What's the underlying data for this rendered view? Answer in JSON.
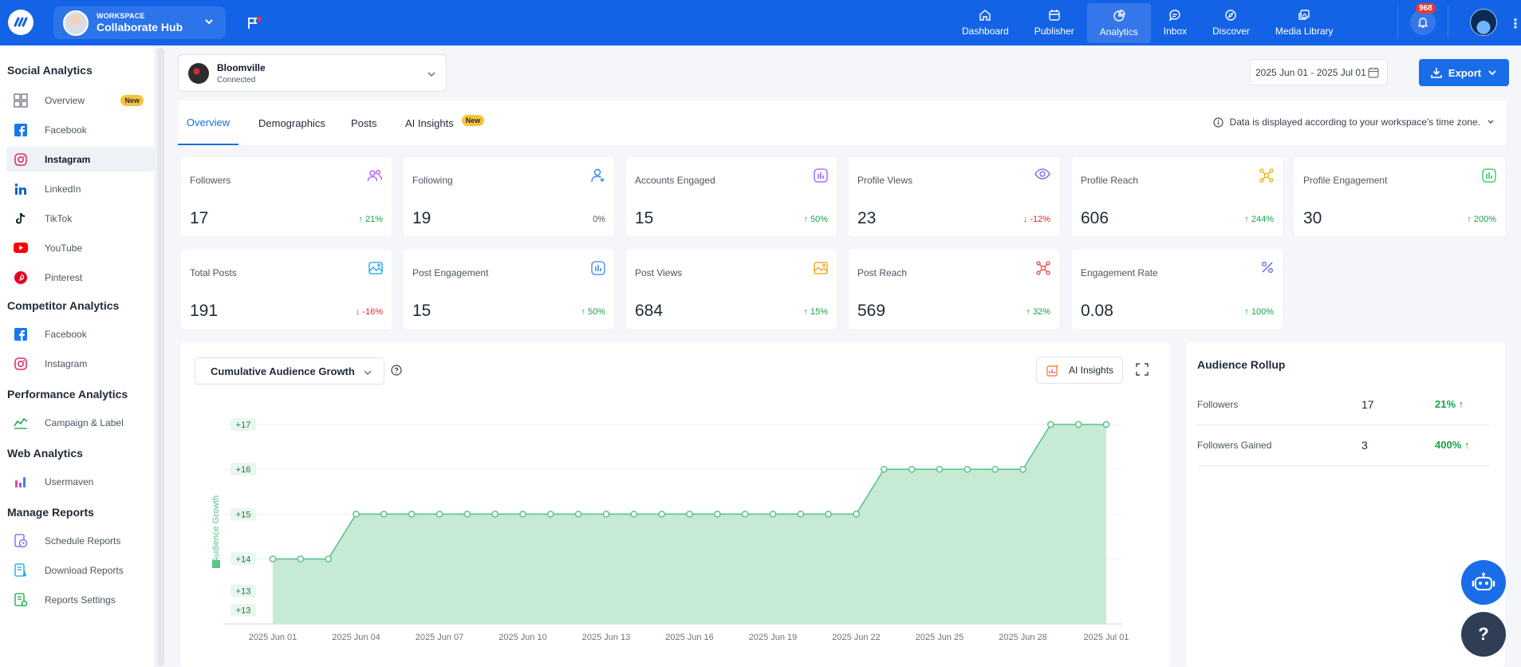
{
  "workspace": {
    "label": "WORKSPACE",
    "name": "Collaborate Hub"
  },
  "nav": [
    {
      "label": "Dashboard",
      "icon": "home-icon"
    },
    {
      "label": "Publisher",
      "icon": "calendar-icon"
    },
    {
      "label": "Analytics",
      "icon": "pie-chart-icon",
      "active": true
    },
    {
      "label": "Inbox",
      "icon": "chat-icon"
    },
    {
      "label": "Discover",
      "icon": "compass-icon"
    },
    {
      "label": "Media Library",
      "icon": "images-icon"
    }
  ],
  "notifications": {
    "count": "968"
  },
  "sidebar": {
    "social_title": "Social Analytics",
    "social_items": [
      {
        "label": "Overview",
        "badge": "New"
      },
      {
        "label": "Facebook"
      },
      {
        "label": "Instagram",
        "active": true
      },
      {
        "label": "LinkedIn"
      },
      {
        "label": "TikTok"
      },
      {
        "label": "YouTube"
      },
      {
        "label": "Pinterest"
      }
    ],
    "competitor_title": "Competitor Analytics",
    "competitor_items": [
      {
        "label": "Facebook"
      },
      {
        "label": "Instagram"
      }
    ],
    "performance_title": "Performance Analytics",
    "performance_items": [
      {
        "label": "Campaign & Label"
      }
    ],
    "web_title": "Web Analytics",
    "web_items": [
      {
        "label": "Usermaven"
      }
    ],
    "reports_title": "Manage Reports",
    "reports_items": [
      {
        "label": "Schedule Reports"
      },
      {
        "label": "Download Reports"
      },
      {
        "label": "Reports Settings"
      }
    ]
  },
  "account": {
    "name": "Bloomville",
    "status": "Connected"
  },
  "date_range": "2025 Jun 01 - 2025 Jul 01",
  "export_label": "Export",
  "tabs": [
    {
      "label": "Overview",
      "active": true
    },
    {
      "label": "Demographics"
    },
    {
      "label": "Posts"
    },
    {
      "label": "AI Insights",
      "badge": "New"
    }
  ],
  "timezone_note": "Data is displayed according to your workspace's time zone.",
  "cards": [
    {
      "label": "Followers",
      "value": "17",
      "change": "21%",
      "dir": "up"
    },
    {
      "label": "Following",
      "value": "19",
      "change": "0%",
      "dir": "flat"
    },
    {
      "label": "Accounts Engaged",
      "value": "15",
      "change": "50%",
      "dir": "up"
    },
    {
      "label": "Profile Views",
      "value": "23",
      "change": "-12%",
      "dir": "down"
    },
    {
      "label": "Profile Reach",
      "value": "606",
      "change": "244%",
      "dir": "up"
    },
    {
      "label": "Profile Engagement",
      "value": "30",
      "change": "200%",
      "dir": "up"
    },
    {
      "label": "Total Posts",
      "value": "191",
      "change": "-16%",
      "dir": "down"
    },
    {
      "label": "Post Engagement",
      "value": "15",
      "change": "50%",
      "dir": "up"
    },
    {
      "label": "Post Views",
      "value": "684",
      "change": "15%",
      "dir": "up"
    },
    {
      "label": "Post Reach",
      "value": "569",
      "change": "32%",
      "dir": "up"
    },
    {
      "label": "Engagement Rate",
      "value": "0.08",
      "change": "100%",
      "dir": "up"
    }
  ],
  "chart_panel": {
    "selector": "Cumulative Audience Growth",
    "ai_label": "AI Insights"
  },
  "chart_data": {
    "type": "area",
    "ylabel": "Audience Growth",
    "y_tick_labels": [
      "+13",
      "+13",
      "+14",
      "+15",
      "+16",
      "+17"
    ],
    "x_tick_labels": [
      "2025 Jun 01",
      "2025 Jun 04",
      "2025 Jun 07",
      "2025 Jun 10",
      "2025 Jun 13",
      "2025 Jun 16",
      "2025 Jun 19",
      "2025 Jun 22",
      "2025 Jun 25",
      "2025 Jun 28",
      "2025 Jul 01"
    ],
    "x": [
      "2025 Jun 01",
      "2025 Jun 02",
      "2025 Jun 03",
      "2025 Jun 04",
      "2025 Jun 05",
      "2025 Jun 06",
      "2025 Jun 07",
      "2025 Jun 08",
      "2025 Jun 09",
      "2025 Jun 10",
      "2025 Jun 11",
      "2025 Jun 12",
      "2025 Jun 13",
      "2025 Jun 14",
      "2025 Jun 15",
      "2025 Jun 16",
      "2025 Jun 17",
      "2025 Jun 18",
      "2025 Jun 19",
      "2025 Jun 20",
      "2025 Jun 21",
      "2025 Jun 22",
      "2025 Jun 23",
      "2025 Jun 24",
      "2025 Jun 25",
      "2025 Jun 26",
      "2025 Jun 27",
      "2025 Jun 28",
      "2025 Jun 29",
      "2025 Jun 30",
      "2025 Jul 01"
    ],
    "series": [
      {
        "values": [
          14,
          14,
          14,
          15,
          15,
          15,
          15,
          15,
          15,
          15,
          15,
          15,
          15,
          15,
          15,
          15,
          15,
          15,
          15,
          15,
          15,
          15,
          16,
          16,
          16,
          16,
          16,
          16,
          17,
          17,
          17
        ]
      }
    ],
    "ylim": [
      12.55,
      17
    ],
    "color": "#5cc48a",
    "fill": "#c6ead4",
    "grid": true
  },
  "rollup": {
    "title": "Audience Rollup",
    "rows": [
      {
        "label": "Followers",
        "value": "17",
        "pct": "21% ↑"
      },
      {
        "label": "Followers Gained",
        "value": "3",
        "pct": "400% ↑"
      }
    ]
  },
  "help_label": "?"
}
